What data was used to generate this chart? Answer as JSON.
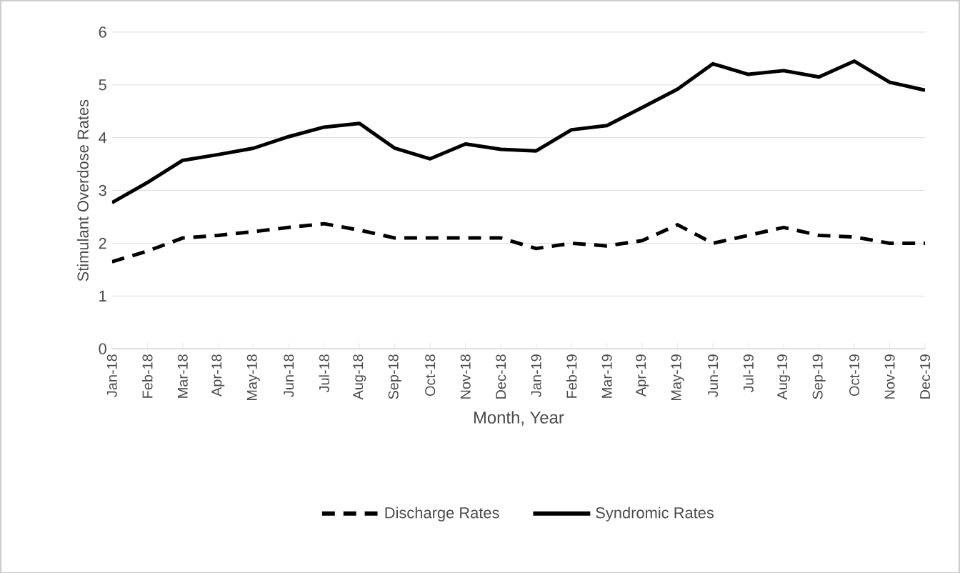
{
  "chart_data": {
    "type": "line",
    "xlabel": "Month, Year",
    "ylabel": "Stimulant Overdose Rates",
    "categories": [
      "Jan-18",
      "Feb-18",
      "Mar-18",
      "Apr-18",
      "May-18",
      "Jun-18",
      "Jul-18",
      "Aug-18",
      "Sep-18",
      "Oct-18",
      "Nov-18",
      "Dec-18",
      "Jan-19",
      "Feb-19",
      "Mar-19",
      "Apr-19",
      "May-19",
      "Jun-19",
      "Jul-19",
      "Aug-19",
      "Sep-19",
      "Oct-19",
      "Nov-19",
      "Dec-19"
    ],
    "series": [
      {
        "name": "Discharge Rates",
        "color": "#000000",
        "line_style": "dashed",
        "values": [
          1.65,
          1.85,
          2.1,
          2.15,
          2.22,
          2.3,
          2.37,
          2.25,
          2.1,
          2.1,
          2.1,
          2.1,
          1.9,
          2.0,
          1.95,
          2.05,
          2.35,
          2.0,
          2.15,
          2.3,
          2.15,
          2.12,
          2.0,
          2.0
        ]
      },
      {
        "name": "Syndromic Rates",
        "color": "#000000",
        "line_style": "solid",
        "values": [
          2.77,
          3.15,
          3.57,
          3.68,
          3.8,
          4.02,
          4.2,
          4.27,
          3.8,
          3.6,
          3.88,
          3.78,
          3.75,
          4.15,
          4.23,
          4.57,
          4.92,
          5.4,
          5.2,
          5.27,
          5.15,
          5.45,
          5.05,
          4.9
        ]
      }
    ],
    "ylim": [
      0,
      6
    ],
    "yticks": [
      0,
      1,
      2,
      3,
      4,
      5,
      6
    ],
    "grid": "y",
    "legend": "bottom",
    "marker": "none"
  }
}
